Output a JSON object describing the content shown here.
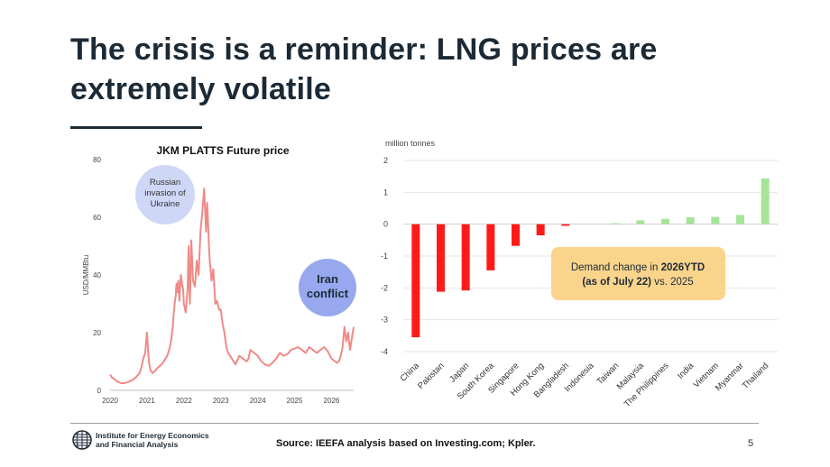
{
  "slide": {
    "title_line1": "The crisis is a reminder: LNG prices are",
    "title_line2": "extremely volatile",
    "source": "Source: IEEFA analysis based on Investing.com; Kpler.",
    "page_number": "5",
    "logo_line1": "Institute for Energy Economics",
    "logo_line2": "and Financial Analysis"
  },
  "chart_data": [
    {
      "type": "line",
      "title": "JKM PLATTS Future price",
      "xlabel": "",
      "ylabel": "USD/MMBtu",
      "xlim": [
        2020.0,
        2026.6
      ],
      "ylim": [
        0,
        80
      ],
      "x_ticks": [
        "2020",
        "2021",
        "2022",
        "2023",
        "2024",
        "2025",
        "2026"
      ],
      "y_ticks": [
        "0",
        "20",
        "40",
        "60",
        "80"
      ],
      "color": "#f08a86",
      "grid": false,
      "annotations": [
        {
          "lines": [
            "Russian",
            "invasion of",
            "Ukraine"
          ],
          "style": "light"
        },
        {
          "lines": [
            "Iran",
            "conflict"
          ],
          "style": "bold"
        }
      ],
      "series": [
        {
          "x": [
            2020.0,
            2020.05,
            2020.1,
            2020.2,
            2020.3,
            2020.4,
            2020.5,
            2020.6,
            2020.7,
            2020.8,
            2020.85,
            2020.9,
            2020.95,
            2021.0,
            2021.03,
            2021.06,
            2021.1,
            2021.15,
            2021.2,
            2021.3,
            2021.4,
            2021.5,
            2021.55,
            2021.6,
            2021.65,
            2021.7,
            2021.72,
            2021.75,
            2021.78,
            2021.8,
            2021.82,
            2021.85,
            2021.88,
            2021.9,
            2021.92,
            2021.95,
            2021.98,
            2022.0,
            2022.05,
            2022.1,
            2022.13,
            2022.16,
            2022.18,
            2022.2,
            2022.25,
            2022.3,
            2022.35,
            2022.4,
            2022.45,
            2022.5,
            2022.55,
            2022.6,
            2022.63,
            2022.65,
            2022.68,
            2022.7,
            2022.75,
            2022.8,
            2022.85,
            2022.9,
            2022.95,
            2023.0,
            2023.05,
            2023.1,
            2023.15,
            2023.2,
            2023.3,
            2023.4,
            2023.5,
            2023.6,
            2023.7,
            2023.75,
            2023.8,
            2023.9,
            2024.0,
            2024.1,
            2024.2,
            2024.3,
            2024.4,
            2024.5,
            2024.6,
            2024.7,
            2024.8,
            2024.9,
            2025.0,
            2025.1,
            2025.2,
            2025.3,
            2025.4,
            2025.5,
            2025.6,
            2025.7,
            2025.8,
            2025.9,
            2026.0,
            2026.1,
            2026.15,
            2026.2,
            2026.25,
            2026.3,
            2026.35,
            2026.4,
            2026.45,
            2026.5,
            2026.55,
            2026.6
          ],
          "y": [
            5.5,
            4.5,
            4,
            3,
            2.5,
            2.5,
            3,
            3.5,
            4.5,
            6,
            8,
            11,
            13,
            20,
            14,
            9,
            7,
            6,
            6.5,
            8,
            9,
            11,
            12,
            14,
            17,
            22,
            26,
            30,
            33,
            37,
            34,
            38,
            31,
            36,
            40,
            37,
            35,
            30,
            27,
            35,
            50,
            30,
            38,
            52,
            38,
            36,
            45,
            40,
            55,
            62,
            70,
            55,
            65,
            60,
            50,
            45,
            38,
            42,
            30,
            31,
            28,
            28,
            23,
            20,
            15,
            13,
            11,
            9,
            12,
            11,
            10,
            11,
            14,
            13,
            12,
            10,
            9,
            8.5,
            9.5,
            11,
            13,
            12,
            12.5,
            14,
            14.5,
            15,
            14,
            13,
            15,
            14,
            13,
            14,
            15,
            13.5,
            11,
            10,
            9.5,
            10,
            12,
            15,
            22,
            17,
            20,
            14,
            18,
            22
          ]
        }
      ]
    },
    {
      "type": "bar",
      "title": "",
      "ylabel": "million tonnes",
      "xlabel": "",
      "ylim": [
        -4,
        2
      ],
      "y_ticks": [
        "2",
        "1",
        "0",
        "-1",
        "-2",
        "-3",
        "-4"
      ],
      "grid": true,
      "categories": [
        "China",
        "Pakistan",
        "Japan",
        "South Korea",
        "Singapore",
        "Hong Kong",
        "Bangladesh",
        "Indonesia",
        "Taiwan",
        "Malaysia",
        "The Philippines",
        "India",
        "Vietnam",
        "Myanmar",
        "Thailand"
      ],
      "values": [
        -3.55,
        -2.12,
        -2.08,
        -1.45,
        -0.68,
        -0.35,
        -0.05,
        0.0,
        0.03,
        0.12,
        0.17,
        0.22,
        0.23,
        0.29,
        1.44
      ],
      "negative_color": "#ff1a1a",
      "positive_color": "#a8e39a",
      "annotation": {
        "text_before": "Demand change in ",
        "bold_1": "2026YTD",
        "line2_bold": "(as of July 22)",
        "line2_after": " vs. 2025",
        "bg_color": "#fbd48c"
      }
    }
  ]
}
